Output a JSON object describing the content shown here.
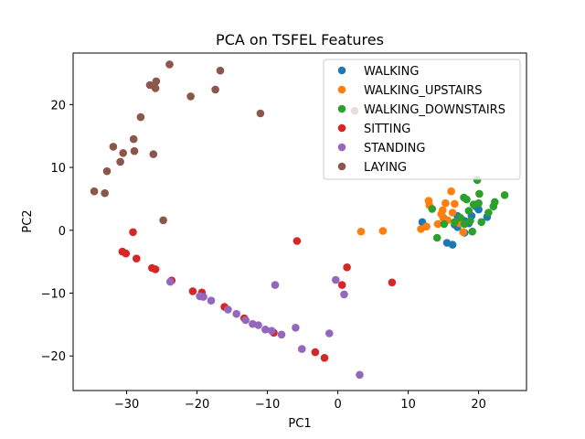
{
  "chart_data": {
    "type": "scatter",
    "title": "PCA on TSFEL Features",
    "xlabel": "PC1",
    "ylabel": "PC2",
    "xlim": [
      -37.6,
      26.8
    ],
    "ylim": [
      -25.5,
      28.2
    ],
    "xticks": [
      -30,
      -20,
      -10,
      0,
      10,
      20
    ],
    "yticks": [
      -20,
      -10,
      0,
      10,
      20
    ],
    "xtick_labels": [
      "−30",
      "−20",
      "−10",
      "0",
      "10",
      "20"
    ],
    "ytick_labels": [
      "−20",
      "−10",
      "0",
      "10",
      "20"
    ],
    "grid": false,
    "legend_position": "top-right",
    "series": [
      {
        "name": "WALKING",
        "color": "#1f77b4",
        "points": [
          [
            12.0,
            1.3
          ],
          [
            15.0,
            2.0
          ],
          [
            15.5,
            -2.0
          ],
          [
            16.3,
            -2.3
          ],
          [
            16.6,
            0.9
          ],
          [
            17.0,
            2.3
          ],
          [
            17.5,
            1.8
          ],
          [
            18.0,
            -0.4
          ],
          [
            18.6,
            1.1
          ],
          [
            19.0,
            2.3
          ],
          [
            19.6,
            3.8
          ],
          [
            20.0,
            3.3
          ],
          [
            21.2,
            2.1
          ],
          [
            17.0,
            0.5
          ],
          [
            18.0,
            1.5
          ]
        ]
      },
      {
        "name": "WALKING_UPSTAIRS",
        "color": "#ff7f0e",
        "points": [
          [
            3.3,
            -0.2
          ],
          [
            6.4,
            -0.1
          ],
          [
            11.8,
            0.2
          ],
          [
            12.6,
            0.6
          ],
          [
            12.9,
            4.7
          ],
          [
            13.0,
            4.0
          ],
          [
            14.2,
            1.0
          ],
          [
            14.7,
            2.6
          ],
          [
            14.9,
            3.2
          ],
          [
            15.3,
            4.3
          ],
          [
            15.6,
            1.6
          ],
          [
            16.1,
            6.2
          ],
          [
            16.3,
            2.8
          ],
          [
            16.6,
            4.2
          ],
          [
            17.8,
            -0.3
          ],
          [
            17.3,
            1.1
          ],
          [
            15.0,
            1.9
          ]
        ]
      },
      {
        "name": "WALKING_DOWNSTAIRS",
        "color": "#2ca02c",
        "points": [
          [
            13.4,
            3.4
          ],
          [
            14.1,
            -1.2
          ],
          [
            15.1,
            1.0
          ],
          [
            16.6,
            1.3
          ],
          [
            17.4,
            2.0
          ],
          [
            17.9,
            5.2
          ],
          [
            18.3,
            4.9
          ],
          [
            18.6,
            3.1
          ],
          [
            18.8,
            1.5
          ],
          [
            19.1,
            -0.2
          ],
          [
            19.3,
            4.1
          ],
          [
            19.8,
            8.0
          ],
          [
            20.1,
            5.8
          ],
          [
            20.4,
            1.3
          ],
          [
            21.4,
            2.8
          ],
          [
            22.1,
            3.8
          ],
          [
            22.3,
            4.5
          ],
          [
            23.7,
            5.6
          ],
          [
            18.0,
            1.0
          ],
          [
            20.0,
            4.3
          ]
        ]
      },
      {
        "name": "SITTING",
        "color": "#d62728",
        "points": [
          [
            -30.6,
            -3.4
          ],
          [
            -30.1,
            -3.7
          ],
          [
            -29.1,
            -0.3
          ],
          [
            -28.6,
            -4.5
          ],
          [
            -26.4,
            -6.0
          ],
          [
            -25.9,
            -6.2
          ],
          [
            -23.6,
            -8.0
          ],
          [
            -20.6,
            -9.7
          ],
          [
            -19.3,
            -9.9
          ],
          [
            -16.1,
            -12.2
          ],
          [
            -13.3,
            -14.0
          ],
          [
            -9.1,
            -16.3
          ],
          [
            -5.8,
            -1.7
          ],
          [
            -3.2,
            -19.4
          ],
          [
            -1.9,
            -20.3
          ],
          [
            0.6,
            -8.7
          ],
          [
            1.3,
            -5.9
          ],
          [
            7.7,
            -8.3
          ]
        ]
      },
      {
        "name": "STANDING",
        "color": "#9467bd",
        "points": [
          [
            -23.8,
            -8.2
          ],
          [
            -19.6,
            -10.5
          ],
          [
            -19.1,
            -10.6
          ],
          [
            -18.0,
            -11.2
          ],
          [
            -15.6,
            -12.6
          ],
          [
            -14.4,
            -13.3
          ],
          [
            -13.1,
            -14.3
          ],
          [
            -12.1,
            -14.9
          ],
          [
            -11.3,
            -15.1
          ],
          [
            -10.3,
            -15.8
          ],
          [
            -9.4,
            -16.0
          ],
          [
            -8.9,
            -8.7
          ],
          [
            -8.0,
            -16.6
          ],
          [
            -6.0,
            -15.5
          ],
          [
            -5.1,
            -18.9
          ],
          [
            -1.2,
            -16.4
          ],
          [
            -0.3,
            -7.9
          ],
          [
            0.9,
            -10.2
          ],
          [
            3.1,
            -23.0
          ]
        ]
      },
      {
        "name": "LAYING",
        "color": "#8c564b",
        "points": [
          [
            -34.6,
            6.2
          ],
          [
            -33.1,
            5.9
          ],
          [
            -32.8,
            9.4
          ],
          [
            -31.9,
            13.3
          ],
          [
            -30.9,
            10.9
          ],
          [
            -30.5,
            12.3
          ],
          [
            -29.0,
            14.5
          ],
          [
            -28.9,
            12.6
          ],
          [
            -28.0,
            18.0
          ],
          [
            -26.7,
            23.1
          ],
          [
            -26.2,
            12.1
          ],
          [
            -25.9,
            22.6
          ],
          [
            -25.8,
            23.7
          ],
          [
            -24.8,
            1.6
          ],
          [
            -23.9,
            26.4
          ],
          [
            -20.9,
            21.3
          ],
          [
            -17.4,
            22.4
          ],
          [
            -16.7,
            25.4
          ],
          [
            -11.0,
            18.6
          ],
          [
            2.4,
            19.0
          ]
        ]
      }
    ]
  }
}
